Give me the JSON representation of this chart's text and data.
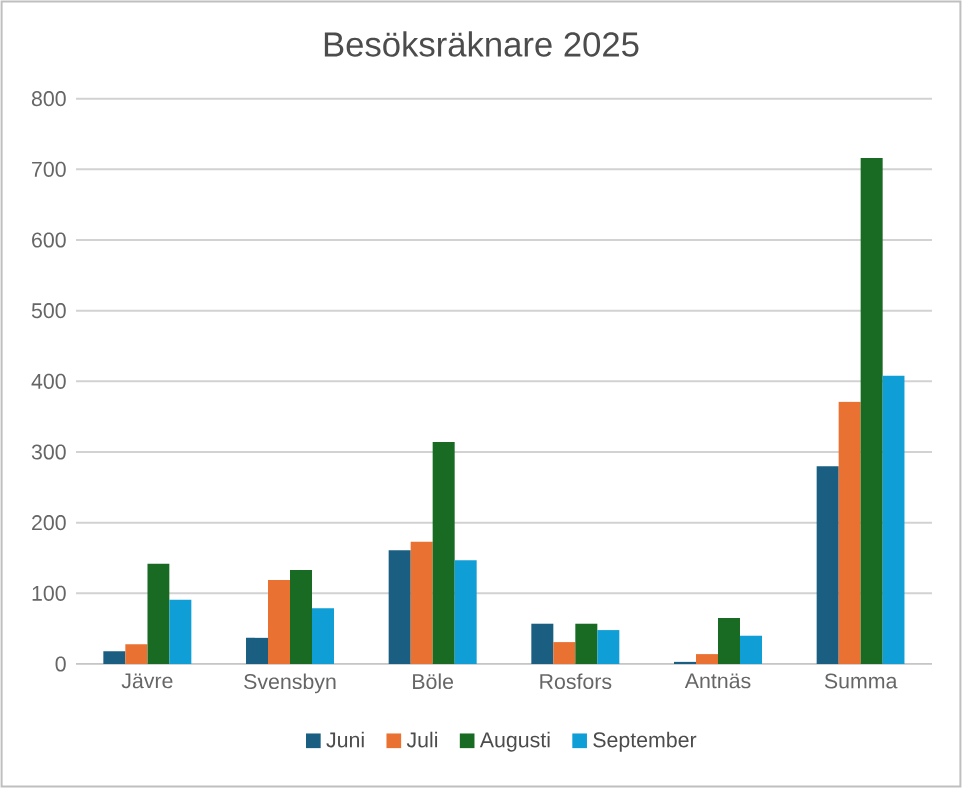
{
  "chart_data": {
    "type": "bar",
    "title": "Besöksräknare 2025",
    "categories": [
      "Jävre",
      "Svensbyn",
      "Böle",
      "Rosfors",
      "Antnäs",
      "Summa"
    ],
    "series": [
      {
        "name": "Juni",
        "color": "#1a5e82",
        "values": [
          18,
          37,
          161,
          57,
          3,
          280
        ]
      },
      {
        "name": "Juli",
        "color": "#e97132",
        "values": [
          28,
          119,
          173,
          31,
          14,
          371
        ]
      },
      {
        "name": "Augusti",
        "color": "#196b24",
        "values": [
          142,
          133,
          314,
          57,
          65,
          716
        ]
      },
      {
        "name": "September",
        "color": "#0f9ed5",
        "values": [
          91,
          79,
          147,
          48,
          40,
          408
        ]
      }
    ],
    "ylim": [
      0,
      800
    ],
    "yticks": [
      0,
      100,
      200,
      300,
      400,
      500,
      600,
      700,
      800
    ],
    "grid": "y",
    "legend": "bottom"
  }
}
